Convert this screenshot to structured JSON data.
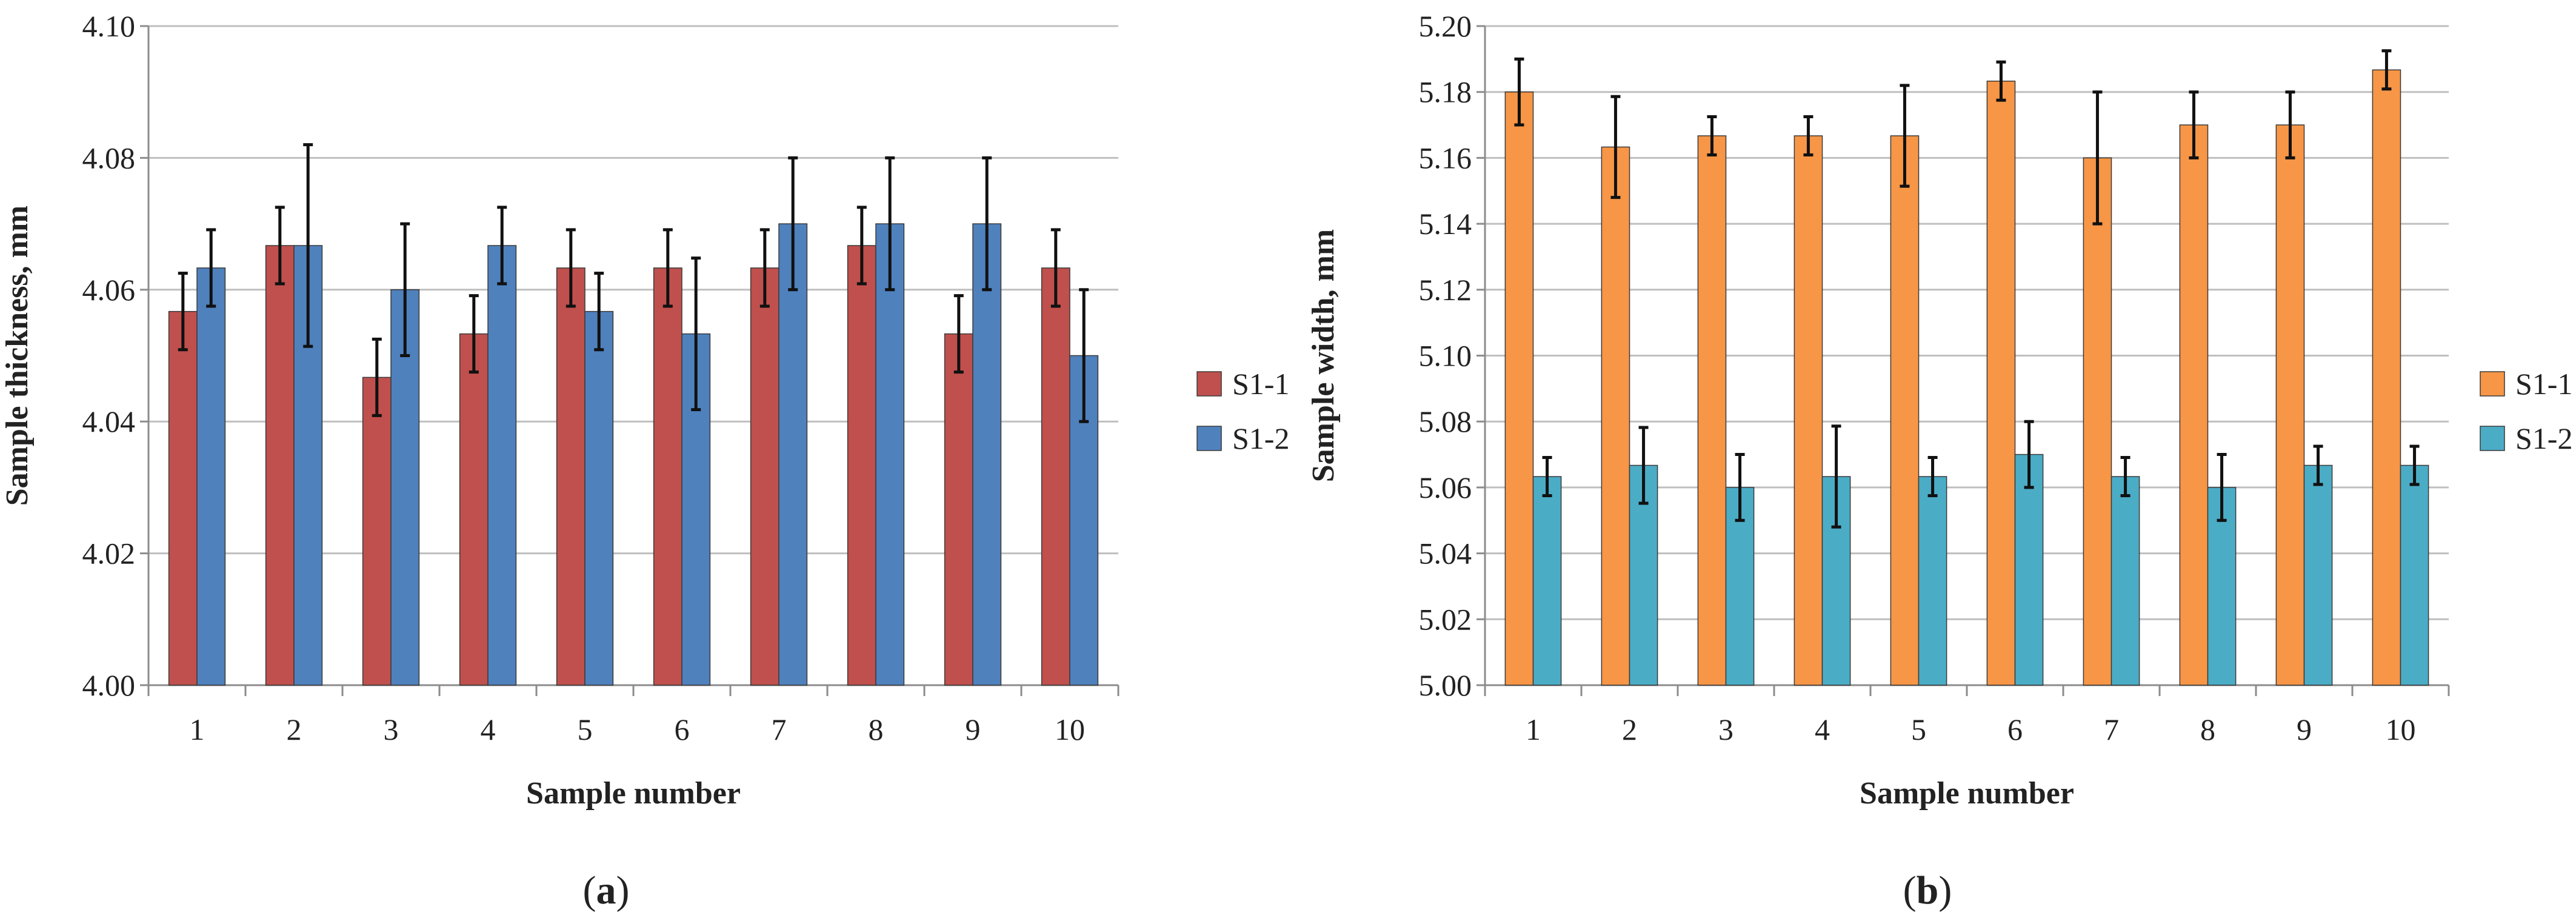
{
  "charts": [
    {
      "id": "a",
      "panel_label_open": "(",
      "panel_label_letter": "a",
      "panel_label_close": ")"
    },
    {
      "id": "b",
      "panel_label_open": "(",
      "panel_label_letter": "b",
      "panel_label_close": ")"
    }
  ],
  "chart_data": [
    {
      "type": "bar",
      "xlabel": "Sample number",
      "ylabel": "Sample thickness, mm",
      "ylim": [
        4.0,
        4.1
      ],
      "ytick_step": 0.02,
      "ytick_decimals": 2,
      "grid": true,
      "legend_position": "right",
      "categories": [
        "1",
        "2",
        "3",
        "4",
        "5",
        "6",
        "7",
        "8",
        "9",
        "10"
      ],
      "series": [
        {
          "name": "S1-1",
          "color": "#C0504D",
          "values": [
            4.0567,
            4.0667,
            4.0467,
            4.0533,
            4.0633,
            4.0633,
            4.0633,
            4.0667,
            4.0533,
            4.0633
          ],
          "errors": [
            0.0058,
            0.0058,
            0.0058,
            0.0058,
            0.0058,
            0.0058,
            0.0058,
            0.0058,
            0.0058,
            0.0058
          ]
        },
        {
          "name": "S1-2",
          "color": "#4F81BD",
          "values": [
            4.0633,
            4.0667,
            4.06,
            4.0667,
            4.0567,
            4.0533,
            4.07,
            4.07,
            4.07,
            4.05
          ],
          "errors": [
            0.0058,
            0.0153,
            0.01,
            0.0058,
            0.0058,
            0.0115,
            0.01,
            0.01,
            0.01,
            0.01
          ]
        }
      ]
    },
    {
      "type": "bar",
      "xlabel": "Sample number",
      "ylabel": "Sample width, mm",
      "ylim": [
        5.0,
        5.2
      ],
      "ytick_step": 0.02,
      "ytick_decimals": 2,
      "grid": true,
      "legend_position": "right",
      "categories": [
        "1",
        "2",
        "3",
        "4",
        "5",
        "6",
        "7",
        "8",
        "9",
        "10"
      ],
      "series": [
        {
          "name": "S1-1",
          "color": "#F79646",
          "values": [
            5.18,
            5.1633,
            5.1667,
            5.1667,
            5.1667,
            5.1833,
            5.16,
            5.17,
            5.17,
            5.1867
          ],
          "errors": [
            0.01,
            0.0153,
            0.0058,
            0.0058,
            0.0153,
            0.0058,
            0.02,
            0.01,
            0.01,
            0.0058
          ]
        },
        {
          "name": "S1-2",
          "color": "#4BACC6",
          "values": [
            5.0633,
            5.0667,
            5.06,
            5.0633,
            5.0633,
            5.07,
            5.0633,
            5.06,
            5.0667,
            5.0667
          ],
          "errors": [
            0.0058,
            0.0115,
            0.01,
            0.0153,
            0.0058,
            0.01,
            0.0058,
            0.01,
            0.0058,
            0.0058
          ]
        }
      ]
    }
  ]
}
